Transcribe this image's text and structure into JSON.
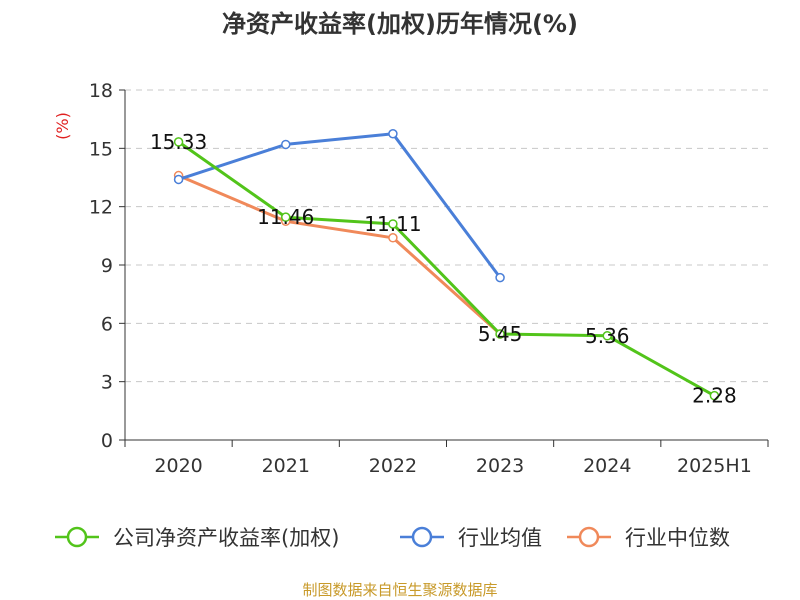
{
  "chart_data": {
    "type": "line",
    "title": "净资产收益率(加权)历年情况(%)",
    "unit_label": "(%)",
    "categories": [
      "2020",
      "2021",
      "2022",
      "2023",
      "2024",
      "2025H1"
    ],
    "y_ticks": [
      "0",
      "3",
      "6",
      "9",
      "12",
      "15",
      "18"
    ],
    "ylim": [
      0,
      18
    ],
    "grid": true,
    "legend_position": "bottom",
    "series": [
      {
        "name": "公司净资产收益率(加权)",
        "color": "#52c41a",
        "values": [
          15.33,
          11.46,
          11.11,
          5.45,
          5.36,
          2.28
        ],
        "labels": [
          "15.33",
          "11.46",
          "11.11",
          "5.45",
          "5.36",
          "2.28"
        ]
      },
      {
        "name": "行业均值",
        "color": "#4a7fd8",
        "values": [
          13.4,
          15.2,
          15.75,
          8.35,
          null,
          null
        ]
      },
      {
        "name": "行业中位数",
        "color": "#f0895a",
        "values": [
          13.6,
          11.25,
          10.4,
          5.45,
          null,
          null
        ]
      }
    ],
    "source": "制图数据来自恒生聚源数据库"
  }
}
